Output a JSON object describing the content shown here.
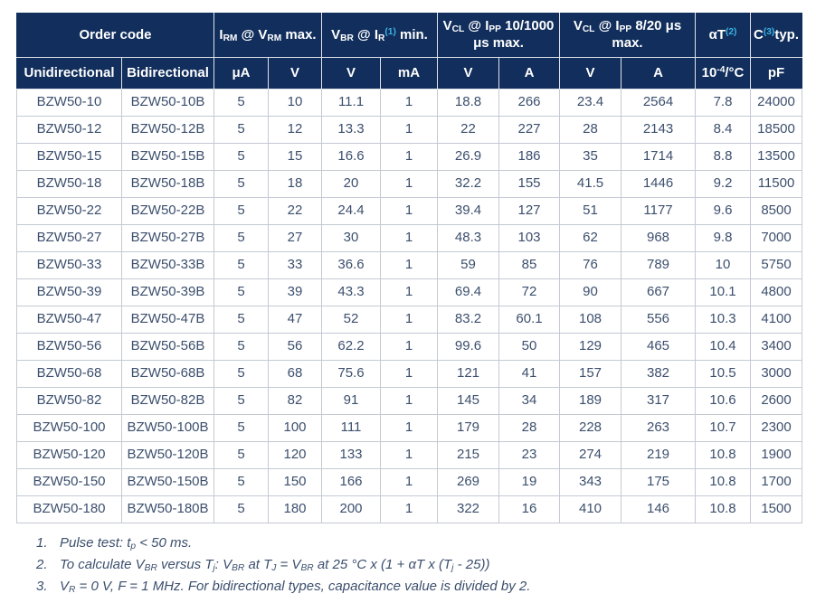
{
  "colors": {
    "header_background": "#112e5c",
    "header_text": "#ffffff",
    "note_reference_blue": "#3cb4e6",
    "body_text": "#3c4f6d",
    "grid_line": "#c4c9d3"
  },
  "table": {
    "header_groups": [
      {
        "label": "Order code",
        "colspan": 2
      },
      {
        "label": "I~RM~ @ V~RM~ max.",
        "colspan": 2
      },
      {
        "label": "V~BR~ @ I~R~^(1)^ min.",
        "colspan": 2
      },
      {
        "label": "V~CL~ @ I~PP~ 10/1000 μs max.",
        "colspan": 2
      },
      {
        "label": "V~CL~ @ I~PP~ 8/20 μs max.",
        "colspan": 2
      },
      {
        "label": "αT^(2)^",
        "colspan": 1
      },
      {
        "label": "C^(3)^typ.",
        "colspan": 1
      }
    ],
    "subheaders": [
      "Unidirectional",
      "Bidirectional",
      "μA",
      "V",
      "V",
      "mA",
      "V",
      "A",
      "V",
      "A",
      "10^-4^/°C",
      "pF"
    ],
    "rows": [
      [
        "BZW50-10",
        "BZW50-10B",
        "5",
        "10",
        "11.1",
        "1",
        "18.8",
        "266",
        "23.4",
        "2564",
        "7.8",
        "24000"
      ],
      [
        "BZW50-12",
        "BZW50-12B",
        "5",
        "12",
        "13.3",
        "1",
        "22",
        "227",
        "28",
        "2143",
        "8.4",
        "18500"
      ],
      [
        "BZW50-15",
        "BZW50-15B",
        "5",
        "15",
        "16.6",
        "1",
        "26.9",
        "186",
        "35",
        "1714",
        "8.8",
        "13500"
      ],
      [
        "BZW50-18",
        "BZW50-18B",
        "5",
        "18",
        "20",
        "1",
        "32.2",
        "155",
        "41.5",
        "1446",
        "9.2",
        "11500"
      ],
      [
        "BZW50-22",
        "BZW50-22B",
        "5",
        "22",
        "24.4",
        "1",
        "39.4",
        "127",
        "51",
        "1177",
        "9.6",
        "8500"
      ],
      [
        "BZW50-27",
        "BZW50-27B",
        "5",
        "27",
        "30",
        "1",
        "48.3",
        "103",
        "62",
        "968",
        "9.8",
        "7000"
      ],
      [
        "BZW50-33",
        "BZW50-33B",
        "5",
        "33",
        "36.6",
        "1",
        "59",
        "85",
        "76",
        "789",
        "10",
        "5750"
      ],
      [
        "BZW50-39",
        "BZW50-39B",
        "5",
        "39",
        "43.3",
        "1",
        "69.4",
        "72",
        "90",
        "667",
        "10.1",
        "4800"
      ],
      [
        "BZW50-47",
        "BZW50-47B",
        "5",
        "47",
        "52",
        "1",
        "83.2",
        "60.1",
        "108",
        "556",
        "10.3",
        "4100"
      ],
      [
        "BZW50-56",
        "BZW50-56B",
        "5",
        "56",
        "62.2",
        "1",
        "99.6",
        "50",
        "129",
        "465",
        "10.4",
        "3400"
      ],
      [
        "BZW50-68",
        "BZW50-68B",
        "5",
        "68",
        "75.6",
        "1",
        "121",
        "41",
        "157",
        "382",
        "10.5",
        "3000"
      ],
      [
        "BZW50-82",
        "BZW50-82B",
        "5",
        "82",
        "91",
        "1",
        "145",
        "34",
        "189",
        "317",
        "10.6",
        "2600"
      ],
      [
        "BZW50-100",
        "BZW50-100B",
        "5",
        "100",
        "111",
        "1",
        "179",
        "28",
        "228",
        "263",
        "10.7",
        "2300"
      ],
      [
        "BZW50-120",
        "BZW50-120B",
        "5",
        "120",
        "133",
        "1",
        "215",
        "23",
        "274",
        "219",
        "10.8",
        "1900"
      ],
      [
        "BZW50-150",
        "BZW50-150B",
        "5",
        "150",
        "166",
        "1",
        "269",
        "19",
        "343",
        "175",
        "10.8",
        "1700"
      ],
      [
        "BZW50-180",
        "BZW50-180B",
        "5",
        "180",
        "200",
        "1",
        "322",
        "16",
        "410",
        "146",
        "10.8",
        "1500"
      ]
    ]
  },
  "footnotes": [
    {
      "num": "1.",
      "text": "Pulse test: t~p~ < 50 ms."
    },
    {
      "num": "2.",
      "text": "To calculate V~BR~ versus T~j~: V~BR~ at T~J~ = V~BR~ at 25 °C x (1 + αT x (T~j~ - 25))"
    },
    {
      "num": "3.",
      "text": "V~R~ = 0 V, F = 1 MHz. For bidirectional types, capacitance value is divided by 2."
    }
  ]
}
